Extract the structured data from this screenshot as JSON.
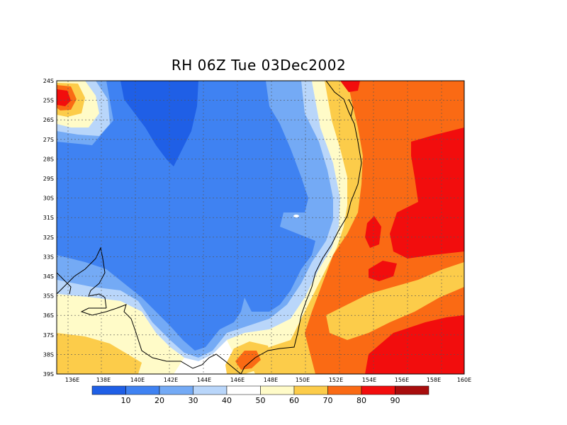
{
  "title": "RH 06Z Tue 03Dec2002",
  "lat_labels": [
    "24S",
    "25S",
    "26S",
    "27S",
    "28S",
    "29S",
    "30S",
    "31S",
    "32S",
    "33S",
    "34S",
    "35S",
    "36S",
    "37S",
    "38S",
    "39S"
  ],
  "lon_labels": [
    "136E",
    "138E",
    "140E",
    "142E",
    "144E",
    "146E",
    "148E",
    "150E",
    "152E",
    "154E",
    "156E",
    "158E",
    "160E"
  ],
  "colorbar": {
    "colors": [
      "#1f5fe6",
      "#3f82f2",
      "#74aaf5",
      "#b9d6fa",
      "#ffffff",
      "#fffbc8",
      "#fccc4a",
      "#fa6a14",
      "#f20d0d",
      "#a80d0d"
    ],
    "labels": [
      "10",
      "20",
      "30",
      "40",
      "50",
      "60",
      "70",
      "80",
      "90"
    ]
  }
}
